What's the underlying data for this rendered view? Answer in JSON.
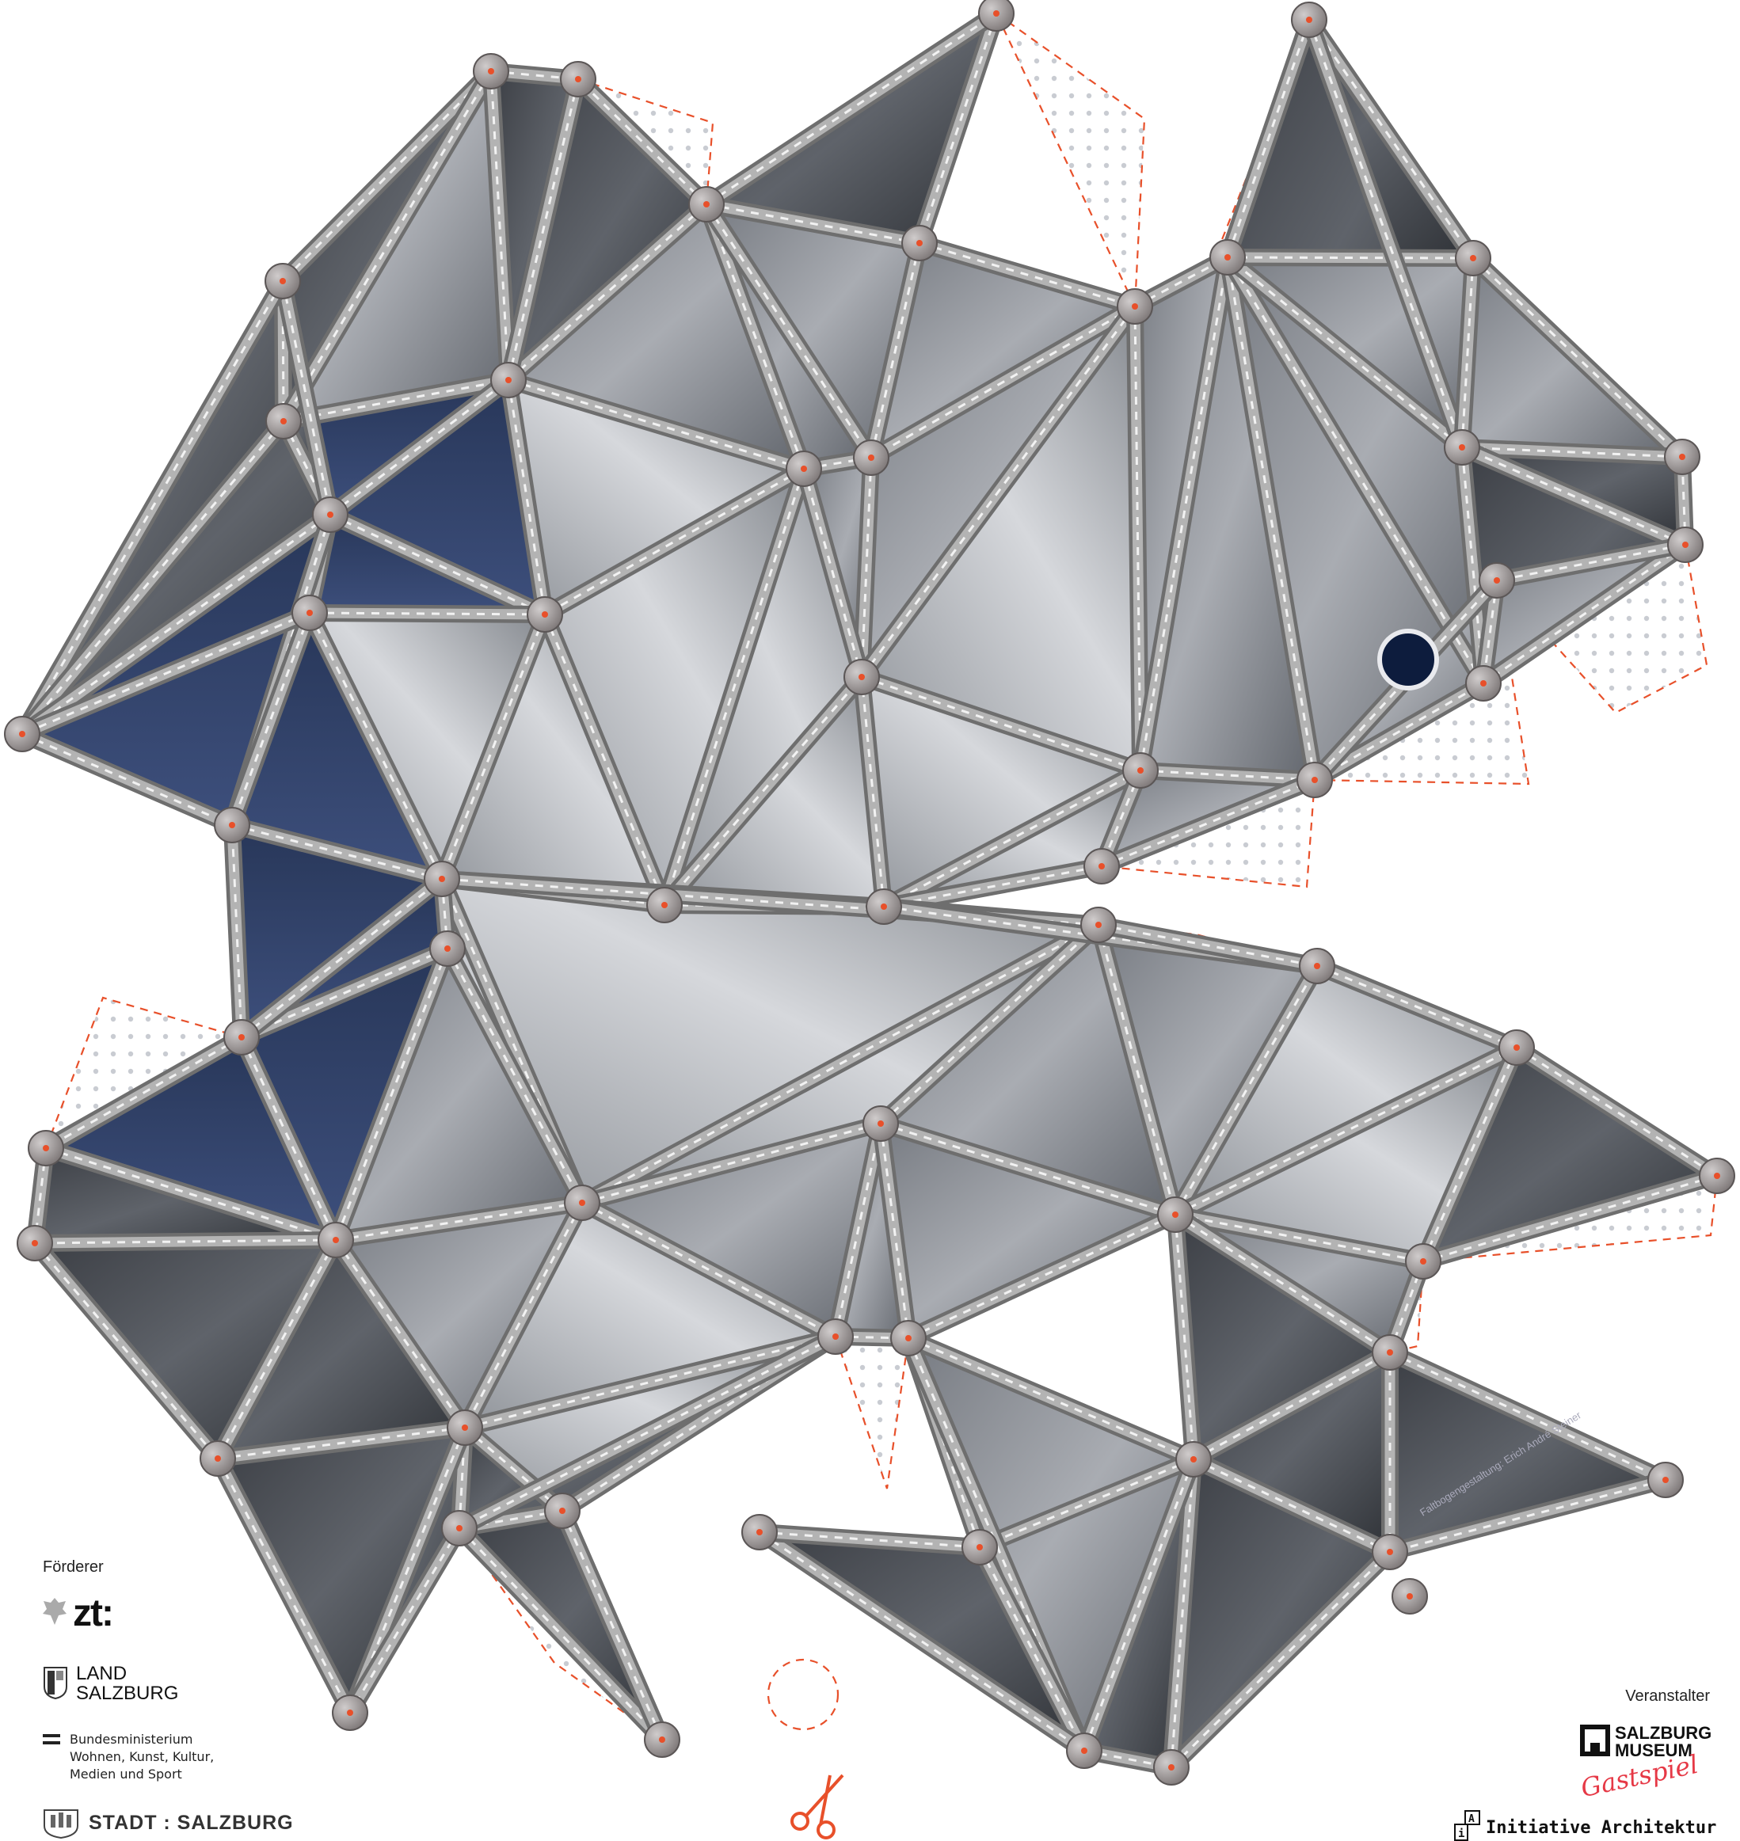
{
  "sponsors": {
    "heading": "Förderer",
    "zt_logo": "zt:",
    "land_line1": "LAND",
    "land_line2": "SALZBURG",
    "ministry_line1": "Bundesministerium",
    "ministry_line2": "Wohnen, Kunst, Kultur,",
    "ministry_line3": "Medien und Sport",
    "stadt_logo": "STADT : SALZBURG"
  },
  "organizers": {
    "heading": "Veranstalter",
    "museum_line1": "SALZBURG",
    "museum_line2": "MUSEUM",
    "museum_script": "Gastspiel",
    "initiative": "Initiative Architektur"
  },
  "credit": "Faltbogengestaltung: Erich André Steiner",
  "colors": {
    "fold_line": "#e8502a",
    "panel_dark": "#4a4d53",
    "panel_light": "#b9bcc1",
    "sky": "#2f3f66",
    "strut": "#9a9a9a"
  },
  "icons": [
    "scissors-icon",
    "eagle-crest-icon",
    "land-crest-icon",
    "austria-flag-icon",
    "stadt-crest-icon",
    "museum-frame-icon",
    "ia-box-icon"
  ]
}
